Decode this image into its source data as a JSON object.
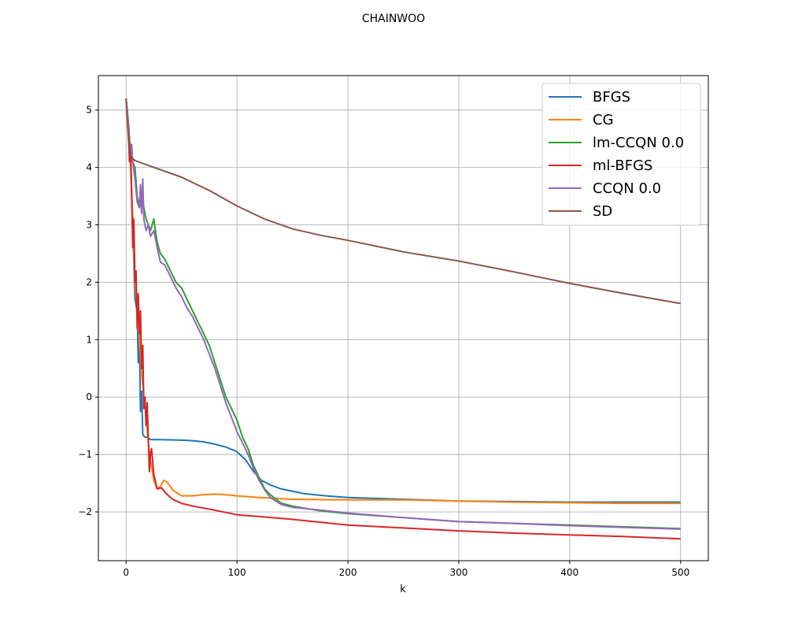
{
  "chart_data": {
    "type": "line",
    "title": "CHAINWOO",
    "xlabel": "k",
    "ylabel": "",
    "xlim": [
      -25,
      525
    ],
    "ylim": [
      -2.85,
      5.6
    ],
    "x_ticks": [
      0,
      100,
      200,
      300,
      400,
      500
    ],
    "y_ticks": [
      -2,
      -1,
      0,
      1,
      2,
      3,
      4,
      5
    ],
    "x_tick_labels": [
      "0",
      "100",
      "200",
      "300",
      "400",
      "500"
    ],
    "y_tick_labels": [
      "−2",
      "−1",
      "0",
      "1",
      "2",
      "3",
      "4",
      "5"
    ],
    "grid": true,
    "legend_position": "top-right",
    "series": [
      {
        "name": "BFGS",
        "color": "#1f77b4",
        "points": [
          [
            0,
            5.2
          ],
          [
            2,
            4.6
          ],
          [
            4,
            4.2
          ],
          [
            6,
            3.0
          ],
          [
            8,
            1.7
          ],
          [
            10,
            1.5
          ],
          [
            11,
            0.6
          ],
          [
            12,
            1.1
          ],
          [
            13,
            -0.25
          ],
          [
            14,
            0.1
          ],
          [
            15,
            -0.65
          ],
          [
            17,
            -0.7
          ],
          [
            19,
            -0.7
          ],
          [
            22,
            -0.74
          ],
          [
            30,
            -0.74
          ],
          [
            50,
            -0.75
          ],
          [
            60,
            -0.76
          ],
          [
            70,
            -0.78
          ],
          [
            80,
            -0.82
          ],
          [
            90,
            -0.87
          ],
          [
            100,
            -0.95
          ],
          [
            108,
            -1.1
          ],
          [
            115,
            -1.3
          ],
          [
            122,
            -1.45
          ],
          [
            130,
            -1.53
          ],
          [
            140,
            -1.6
          ],
          [
            160,
            -1.68
          ],
          [
            180,
            -1.72
          ],
          [
            200,
            -1.75
          ],
          [
            250,
            -1.78
          ],
          [
            300,
            -1.81
          ],
          [
            350,
            -1.82
          ],
          [
            400,
            -1.83
          ],
          [
            450,
            -1.83
          ],
          [
            500,
            -1.83
          ]
        ]
      },
      {
        "name": "CG",
        "color": "#ff7f0e",
        "points": [
          [
            0,
            5.2
          ],
          [
            2,
            4.5
          ],
          [
            4,
            4.0
          ],
          [
            6,
            3.1
          ],
          [
            8,
            2.0
          ],
          [
            10,
            1.5
          ],
          [
            12,
            1.0
          ],
          [
            14,
            0.4
          ],
          [
            16,
            0.0
          ],
          [
            18,
            -0.3
          ],
          [
            20,
            -0.8
          ],
          [
            22,
            -1.1
          ],
          [
            25,
            -1.45
          ],
          [
            28,
            -1.6
          ],
          [
            31,
            -1.55
          ],
          [
            34,
            -1.45
          ],
          [
            37,
            -1.48
          ],
          [
            42,
            -1.62
          ],
          [
            50,
            -1.72
          ],
          [
            60,
            -1.72
          ],
          [
            70,
            -1.7
          ],
          [
            80,
            -1.69
          ],
          [
            90,
            -1.7
          ],
          [
            100,
            -1.72
          ],
          [
            120,
            -1.75
          ],
          [
            150,
            -1.78
          ],
          [
            200,
            -1.79
          ],
          [
            250,
            -1.79
          ],
          [
            300,
            -1.81
          ],
          [
            350,
            -1.83
          ],
          [
            400,
            -1.84
          ],
          [
            450,
            -1.85
          ],
          [
            500,
            -1.85
          ]
        ]
      },
      {
        "name": "lm-CCQN 0.0",
        "color": "#2ca02c",
        "points": [
          [
            0,
            5.2
          ],
          [
            2,
            4.8
          ],
          [
            4,
            4.2
          ],
          [
            6,
            4.1
          ],
          [
            8,
            4.0
          ],
          [
            10,
            3.5
          ],
          [
            12,
            3.3
          ],
          [
            14,
            3.5
          ],
          [
            16,
            3.3
          ],
          [
            18,
            3.1
          ],
          [
            20,
            3.0
          ],
          [
            22,
            2.9
          ],
          [
            25,
            3.1
          ],
          [
            28,
            2.7
          ],
          [
            31,
            2.5
          ],
          [
            35,
            2.4
          ],
          [
            40,
            2.2
          ],
          [
            45,
            2.0
          ],
          [
            50,
            1.9
          ],
          [
            55,
            1.7
          ],
          [
            60,
            1.5
          ],
          [
            65,
            1.3
          ],
          [
            70,
            1.1
          ],
          [
            75,
            0.9
          ],
          [
            80,
            0.6
          ],
          [
            85,
            0.3
          ],
          [
            90,
            0.0
          ],
          [
            95,
            -0.2
          ],
          [
            100,
            -0.4
          ],
          [
            105,
            -0.7
          ],
          [
            110,
            -0.9
          ],
          [
            115,
            -1.2
          ],
          [
            120,
            -1.4
          ],
          [
            125,
            -1.6
          ],
          [
            130,
            -1.7
          ],
          [
            140,
            -1.85
          ],
          [
            150,
            -1.9
          ],
          [
            175,
            -1.98
          ],
          [
            200,
            -2.03
          ],
          [
            250,
            -2.1
          ],
          [
            300,
            -2.17
          ],
          [
            350,
            -2.2
          ],
          [
            400,
            -2.23
          ],
          [
            450,
            -2.26
          ],
          [
            500,
            -2.29
          ]
        ]
      },
      {
        "name": "ml-BFGS",
        "color": "#d62728",
        "points": [
          [
            0,
            5.2
          ],
          [
            2,
            4.7
          ],
          [
            3,
            4.1
          ],
          [
            4,
            4.4
          ],
          [
            5,
            3.5
          ],
          [
            6,
            2.6
          ],
          [
            7,
            3.1
          ],
          [
            8,
            2.0
          ],
          [
            9,
            2.2
          ],
          [
            10,
            1.2
          ],
          [
            11,
            1.8
          ],
          [
            12,
            1.1
          ],
          [
            13,
            1.5
          ],
          [
            14,
            0.5
          ],
          [
            15,
            0.9
          ],
          [
            16,
            -0.2
          ],
          [
            17,
            0.0
          ],
          [
            18,
            -0.5
          ],
          [
            19,
            -0.1
          ],
          [
            20,
            -0.7
          ],
          [
            21,
            -1.3
          ],
          [
            22,
            -1.0
          ],
          [
            23,
            -0.9
          ],
          [
            25,
            -1.35
          ],
          [
            28,
            -1.6
          ],
          [
            32,
            -1.58
          ],
          [
            36,
            -1.68
          ],
          [
            42,
            -1.78
          ],
          [
            50,
            -1.85
          ],
          [
            60,
            -1.9
          ],
          [
            80,
            -1.97
          ],
          [
            100,
            -2.05
          ],
          [
            120,
            -2.08
          ],
          [
            150,
            -2.13
          ],
          [
            200,
            -2.23
          ],
          [
            250,
            -2.28
          ],
          [
            300,
            -2.33
          ],
          [
            350,
            -2.37
          ],
          [
            400,
            -2.4
          ],
          [
            450,
            -2.43
          ],
          [
            500,
            -2.47
          ]
        ]
      },
      {
        "name": "CCQN 0.0",
        "color": "#9467bd",
        "points": [
          [
            0,
            5.2
          ],
          [
            2,
            4.8
          ],
          [
            4,
            4.2
          ],
          [
            5,
            4.4
          ],
          [
            6,
            4.1
          ],
          [
            8,
            3.8
          ],
          [
            10,
            3.4
          ],
          [
            12,
            3.3
          ],
          [
            13,
            3.7
          ],
          [
            14,
            3.2
          ],
          [
            15,
            3.8
          ],
          [
            16,
            3.1
          ],
          [
            18,
            2.9
          ],
          [
            20,
            3.0
          ],
          [
            22,
            2.8
          ],
          [
            25,
            2.9
          ],
          [
            28,
            2.6
          ],
          [
            31,
            2.35
          ],
          [
            35,
            2.3
          ],
          [
            40,
            2.1
          ],
          [
            45,
            1.9
          ],
          [
            50,
            1.75
          ],
          [
            55,
            1.55
          ],
          [
            60,
            1.4
          ],
          [
            65,
            1.2
          ],
          [
            70,
            1.0
          ],
          [
            75,
            0.75
          ],
          [
            80,
            0.5
          ],
          [
            85,
            0.2
          ],
          [
            90,
            -0.1
          ],
          [
            95,
            -0.35
          ],
          [
            100,
            -0.6
          ],
          [
            105,
            -0.8
          ],
          [
            110,
            -1.0
          ],
          [
            115,
            -1.25
          ],
          [
            120,
            -1.45
          ],
          [
            125,
            -1.62
          ],
          [
            130,
            -1.75
          ],
          [
            140,
            -1.87
          ],
          [
            150,
            -1.92
          ],
          [
            175,
            -1.97
          ],
          [
            200,
            -2.02
          ],
          [
            250,
            -2.1
          ],
          [
            300,
            -2.17
          ],
          [
            350,
            -2.2
          ],
          [
            400,
            -2.24
          ],
          [
            450,
            -2.27
          ],
          [
            500,
            -2.3
          ]
        ]
      },
      {
        "name": "SD",
        "color": "#8c564b",
        "points": [
          [
            0,
            5.2
          ],
          [
            2,
            4.6
          ],
          [
            4,
            4.2
          ],
          [
            6,
            4.15
          ],
          [
            8,
            4.12
          ],
          [
            25,
            4.0
          ],
          [
            50,
            3.83
          ],
          [
            75,
            3.6
          ],
          [
            100,
            3.33
          ],
          [
            125,
            3.1
          ],
          [
            150,
            2.93
          ],
          [
            175,
            2.82
          ],
          [
            200,
            2.73
          ],
          [
            250,
            2.53
          ],
          [
            300,
            2.37
          ],
          [
            350,
            2.18
          ],
          [
            400,
            1.98
          ],
          [
            450,
            1.8
          ],
          [
            500,
            1.63
          ]
        ]
      }
    ]
  }
}
